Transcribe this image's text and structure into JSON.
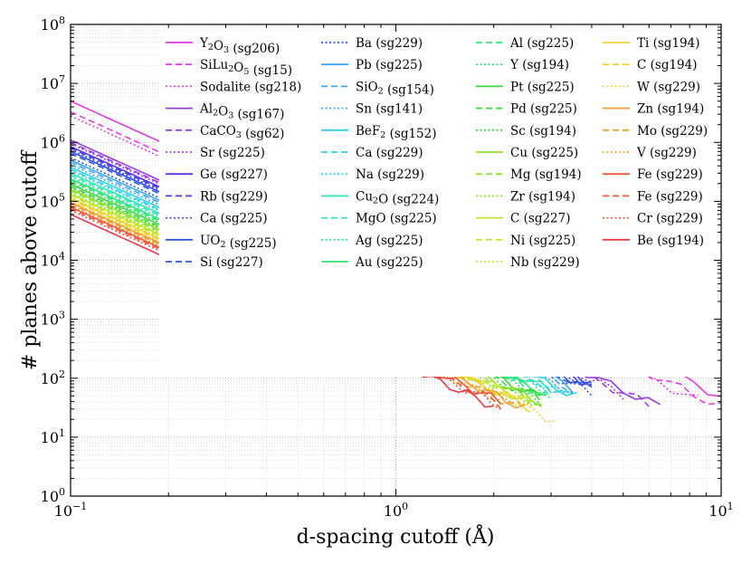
{
  "chart_data": {
    "type": "line",
    "xlabel": "d-spacing cutoff (Å)",
    "ylabel": "# planes above cutoff",
    "xscale": "log",
    "yscale": "log",
    "xlim": [
      0.1,
      10
    ],
    "ylim": [
      1,
      100000000
    ],
    "grid": true,
    "legend_placement": "top-right",
    "x_ticks": [
      {
        "value": 0.1,
        "base": "10",
        "exp": "−1"
      },
      {
        "value": 1,
        "base": "10",
        "exp": "0"
      },
      {
        "value": 10,
        "base": "10",
        "exp": "1"
      }
    ],
    "y_ticks": [
      {
        "value": 1,
        "base": "10",
        "exp": "0"
      },
      {
        "value": 10,
        "base": "10",
        "exp": "1"
      },
      {
        "value": 100,
        "base": "10",
        "exp": "2"
      },
      {
        "value": 1000,
        "base": "10",
        "exp": "3"
      },
      {
        "value": 10000,
        "base": "10",
        "exp": "4"
      },
      {
        "value": 100000,
        "base": "10",
        "exp": "5"
      },
      {
        "value": 1000000,
        "base": "10",
        "exp": "6"
      },
      {
        "value": 10000000,
        "base": "10",
        "exp": "7"
      },
      {
        "value": 100000000,
        "base": "10",
        "exp": "8"
      }
    ],
    "series": [
      {
        "name": "Y2O3 (sg206)",
        "label": {
          "pre": "Y",
          "sub1": "2",
          "mid": "O",
          "sub2": "3",
          "post": " (sg206)"
        },
        "color": "#e33ce6",
        "style": "solid",
        "y_at_0_1": 5000000,
        "x_max": 10.0
      },
      {
        "name": "SiLu2O5 (sg15)",
        "label": {
          "pre": "SiLu",
          "sub1": "2",
          "mid": "O",
          "sub2": "5",
          "post": " (sg15)"
        },
        "color": "#e33ce6",
        "style": "dashed",
        "y_at_0_1": 3300000,
        "x_max": 10.0
      },
      {
        "name": "Sodalite (sg218)",
        "label": {
          "pre": "Sodalite (sg218)"
        },
        "color": "#e33ce6",
        "style": "dotted",
        "y_at_0_1": 2800000,
        "x_max": 8.5
      },
      {
        "name": "Al2O3 (sg167)",
        "label": {
          "pre": "Al",
          "sub1": "2",
          "mid": "O",
          "sub2": "3",
          "post": " (sg167)"
        },
        "color": "#9a3ce6",
        "style": "solid",
        "y_at_0_1": 1100000,
        "x_max": 6.5
      },
      {
        "name": "CaCO3 (sg62)",
        "label": {
          "pre": "CaCO",
          "sub1": "3",
          "post": " (sg62)"
        },
        "color": "#9a3ce6",
        "style": "dashed",
        "y_at_0_1": 1000000,
        "x_max": 6.0
      },
      {
        "name": "Sr (sg225)",
        "label": {
          "pre": "Sr (sg225)"
        },
        "color": "#9a3ce6",
        "style": "dotted",
        "y_at_0_1": 950000,
        "x_max": 5.0
      },
      {
        "name": "Ge (sg227)",
        "label": {
          "pre": "Ge (sg227)"
        },
        "color": "#4f3ce6",
        "style": "solid",
        "y_at_0_1": 850000,
        "x_max": 4.0
      },
      {
        "name": "Rb (sg229)",
        "label": {
          "pre": "Rb (sg229)"
        },
        "color": "#4f3ce6",
        "style": "dashed",
        "y_at_0_1": 800000,
        "x_max": 4.0
      },
      {
        "name": "Ca (sg225)",
        "label": {
          "pre": "Ca (sg225)"
        },
        "color": "#4f3ce6",
        "style": "dotted",
        "y_at_0_1": 750000,
        "x_max": 4.0
      },
      {
        "name": "UO2 (sg225)",
        "label": {
          "pre": "UO",
          "sub1": "2",
          "post": " (sg225)"
        },
        "color": "#2d55e6",
        "style": "solid",
        "y_at_0_1": 700000,
        "x_max": 4.0
      },
      {
        "name": "Si (sg227)",
        "label": {
          "pre": "Si (sg227)"
        },
        "color": "#2d55e6",
        "style": "dashed",
        "y_at_0_1": 650000,
        "x_max": 4.0
      },
      {
        "name": "Ba (sg229)",
        "label": {
          "pre": "Ba (sg229)"
        },
        "color": "#2d55e6",
        "style": "dotted",
        "y_at_0_1": 550000,
        "x_max": 4.0
      },
      {
        "name": "Pb (sg225)",
        "label": {
          "pre": "Pb (sg225)"
        },
        "color": "#3ca7f0",
        "style": "solid",
        "y_at_0_1": 500000,
        "x_max": 3.5
      },
      {
        "name": "SiO2 (sg154)",
        "label": {
          "pre": "SiO",
          "sub1": "2",
          "post": " (sg154)"
        },
        "color": "#3ca7f0",
        "style": "dashed",
        "y_at_0_1": 460000,
        "x_max": 3.5
      },
      {
        "name": "Sn (sg141)",
        "label": {
          "pre": "Sn (sg141)"
        },
        "color": "#3ca7f0",
        "style": "dotted",
        "y_at_0_1": 420000,
        "x_max": 3.5
      },
      {
        "name": "BeF2 (sg152)",
        "label": {
          "pre": "BeF",
          "sub1": "2",
          "post": " (sg152)"
        },
        "color": "#2ed1e6",
        "style": "solid",
        "y_at_0_1": 380000,
        "x_max": 3.6
      },
      {
        "name": "Ca (sg229)",
        "label": {
          "pre": "Ca (sg229)"
        },
        "color": "#2ed1e6",
        "style": "dashed",
        "y_at_0_1": 350000,
        "x_max": 3.5
      },
      {
        "name": "Na (sg229)",
        "label": {
          "pre": "Na (sg229)"
        },
        "color": "#2ed1e6",
        "style": "dotted",
        "y_at_0_1": 330000,
        "x_max": 3.3
      },
      {
        "name": "Cu2O (sg224)",
        "label": {
          "pre": "Cu",
          "sub1": "2",
          "post": "O (sg224)"
        },
        "color": "#2ee6b4",
        "style": "solid",
        "y_at_0_1": 300000,
        "x_max": 3.0
      },
      {
        "name": "MgO (sg225)",
        "label": {
          "pre": "MgO (sg225)"
        },
        "color": "#2ee6b4",
        "style": "dashed",
        "y_at_0_1": 280000,
        "x_max": 3.0
      },
      {
        "name": "Ag (sg225)",
        "label": {
          "pre": "Ag (sg225)"
        },
        "color": "#2ee6b4",
        "style": "dotted",
        "y_at_0_1": 260000,
        "x_max": 3.0
      },
      {
        "name": "Au (sg225)",
        "label": {
          "pre": "Au (sg225)"
        },
        "color": "#2ee672",
        "style": "solid",
        "y_at_0_1": 240000,
        "x_max": 2.9
      },
      {
        "name": "Al (sg225)",
        "label": {
          "pre": "Al (sg225)"
        },
        "color": "#2ee672",
        "style": "dashed",
        "y_at_0_1": 225000,
        "x_max": 2.9
      },
      {
        "name": "Y (sg194)",
        "label": {
          "pre": "Y (sg194)"
        },
        "color": "#2ee672",
        "style": "dotted",
        "y_at_0_1": 210000,
        "x_max": 2.9
      },
      {
        "name": "Pt (sg225)",
        "label": {
          "pre": "Pt (sg225)"
        },
        "color": "#3ad93a",
        "style": "solid",
        "y_at_0_1": 195000,
        "x_max": 2.8
      },
      {
        "name": "Pd (sg225)",
        "label": {
          "pre": "Pd (sg225)"
        },
        "color": "#3ad93a",
        "style": "dashed",
        "y_at_0_1": 180000,
        "x_max": 2.8
      },
      {
        "name": "Sc (sg194)",
        "label": {
          "pre": "Sc (sg194)"
        },
        "color": "#3ad93a",
        "style": "dotted",
        "y_at_0_1": 170000,
        "x_max": 2.8
      },
      {
        "name": "Cu (sg225)",
        "label": {
          "pre": "Cu (sg225)"
        },
        "color": "#8ae62e",
        "style": "solid",
        "y_at_0_1": 160000,
        "x_max": 2.8
      },
      {
        "name": "Mg (sg194)",
        "label": {
          "pre": "Mg (sg194)"
        },
        "color": "#8ae62e",
        "style": "dashed",
        "y_at_0_1": 150000,
        "x_max": 2.8
      },
      {
        "name": "Zr (sg194)",
        "label": {
          "pre": "Zr (sg194)"
        },
        "color": "#8ae62e",
        "style": "dotted",
        "y_at_0_1": 140000,
        "x_max": 2.8
      },
      {
        "name": "C (sg227)",
        "label": {
          "pre": "C (sg227)"
        },
        "color": "#c6e62e",
        "style": "solid",
        "y_at_0_1": 132000,
        "x_max": 2.6
      },
      {
        "name": "Ni (sg225)",
        "label": {
          "pre": "Ni (sg225)"
        },
        "color": "#c6e62e",
        "style": "dashed",
        "y_at_0_1": 125000,
        "x_max": 2.6
      },
      {
        "name": "Nb (sg229)",
        "label": {
          "pre": "Nb (sg229)"
        },
        "color": "#c6e62e",
        "style": "dotted",
        "y_at_0_1": 118000,
        "x_max": 2.6
      },
      {
        "name": "Ti (sg194)",
        "label": {
          "pre": "Ti (sg194)"
        },
        "color": "#f0d430",
        "style": "solid",
        "y_at_0_1": 112000,
        "x_max": 2.5
      },
      {
        "name": "C (sg194)",
        "label": {
          "pre": "C (sg194)"
        },
        "color": "#f0d430",
        "style": "dashed",
        "y_at_0_1": 106000,
        "x_max": 2.6
      },
      {
        "name": "W (sg229)",
        "label": {
          "pre": "W (sg229)"
        },
        "color": "#f0d430",
        "style": "dotted",
        "y_at_0_1": 100000,
        "x_max": 3.1
      },
      {
        "name": "Zn (sg194)",
        "label": {
          "pre": "Zn (sg194)"
        },
        "color": "#f0a030",
        "style": "solid",
        "y_at_0_1": 95000,
        "x_max": 2.5
      },
      {
        "name": "Mo (sg229)",
        "label": {
          "pre": "Mo (sg229)"
        },
        "color": "#f0a030",
        "style": "dashed",
        "y_at_0_1": 90000,
        "x_max": 2.4
      },
      {
        "name": "V (sg229)",
        "label": {
          "pre": "V (sg229)"
        },
        "color": "#f0a030",
        "style": "dotted",
        "y_at_0_1": 85000,
        "x_max": 2.3
      },
      {
        "name": "Fe (sg229)",
        "label": {
          "pre": "Fe (sg229)"
        },
        "color": "#f05a3c",
        "style": "solid",
        "y_at_0_1": 80000,
        "x_max": 2.1
      },
      {
        "name": "Fe (sg229)",
        "label": {
          "pre": "Fe (sg229)"
        },
        "color": "#f05a3c",
        "style": "dashed",
        "y_at_0_1": 75000,
        "x_max": 2.1
      },
      {
        "name": "Cr (sg229)",
        "label": {
          "pre": "Cr (sg229)"
        },
        "color": "#f05a3c",
        "style": "dotted",
        "y_at_0_1": 70000,
        "x_max": 2.1
      },
      {
        "name": "Be (sg194)",
        "label": {
          "pre": "Be (sg194)"
        },
        "color": "#eb3a48",
        "style": "solid",
        "y_at_0_1": 60000,
        "x_max": 2.0
      }
    ]
  }
}
